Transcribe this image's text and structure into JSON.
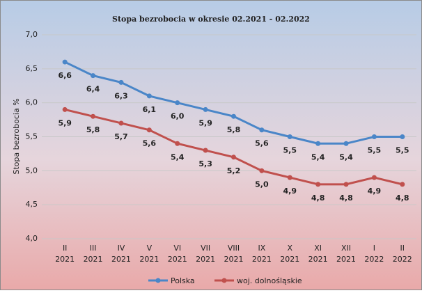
{
  "chart_data": {
    "type": "line",
    "title": "Stopa bezrobocia w okresie 02.2021 - 02.2022",
    "ylabel": "Stopa bezrobocia %",
    "categories": [
      [
        "II",
        "2021"
      ],
      [
        "III",
        "2021"
      ],
      [
        "IV",
        "2021"
      ],
      [
        "V",
        "2021"
      ],
      [
        "VI",
        "2021"
      ],
      [
        "VII",
        "2021"
      ],
      [
        "VIII",
        "2021"
      ],
      [
        "IX",
        "2021"
      ],
      [
        "X",
        "2021"
      ],
      [
        "XI",
        "2021"
      ],
      [
        "XII",
        "2021"
      ],
      [
        "I",
        "2022"
      ],
      [
        "II",
        "2022"
      ]
    ],
    "series": [
      {
        "name": "Polska",
        "color": "#4a86c8",
        "values": [
          6.6,
          6.4,
          6.3,
          6.1,
          6.0,
          5.9,
          5.8,
          5.6,
          5.5,
          5.4,
          5.4,
          5.5,
          5.5
        ],
        "value_labels": [
          "6,6",
          "6,4",
          "6,3",
          "6,1",
          "6,0",
          "5,9",
          "5,8",
          "5,6",
          "5,5",
          "5,4",
          "5,4",
          "5,5",
          "5,5"
        ]
      },
      {
        "name": "woj. dolnośląskie",
        "color": "#c0504d",
        "values": [
          5.9,
          5.8,
          5.7,
          5.6,
          5.4,
          5.3,
          5.2,
          5.0,
          4.9,
          4.8,
          4.8,
          4.9,
          4.8
        ],
        "value_labels": [
          "5,9",
          "5,8",
          "5,7",
          "5,6",
          "5,4",
          "5,3",
          "5,2",
          "5,0",
          "4,9",
          "4,8",
          "4,8",
          "4,9",
          "4,8"
        ]
      }
    ],
    "ylim": [
      4.0,
      7.0
    ],
    "yticks": [
      {
        "value": 4.0,
        "label": "4,0"
      },
      {
        "value": 4.5,
        "label": "4,5"
      },
      {
        "value": 5.0,
        "label": "5,0"
      },
      {
        "value": 5.5,
        "label": "5,5"
      },
      {
        "value": 6.0,
        "label": "6,0"
      },
      {
        "value": 6.5,
        "label": "6,5"
      },
      {
        "value": 7.0,
        "label": "7,0"
      }
    ],
    "grid": true,
    "legend": "bottom"
  }
}
